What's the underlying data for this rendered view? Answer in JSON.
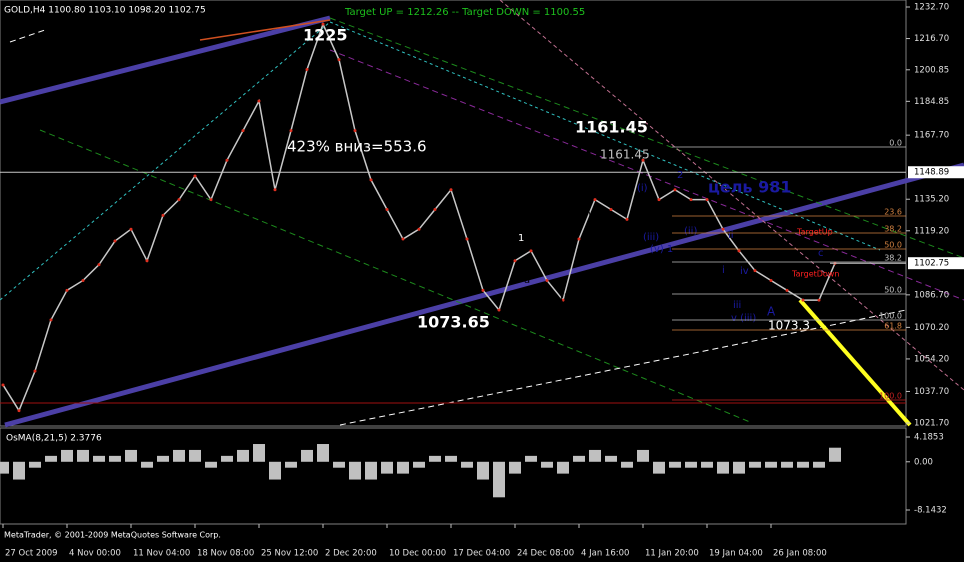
{
  "header": "GOLD,H4  1100.80 1103.10 1098.20 1102.75",
  "targets": "Target UP = 1212.26 -- Target DOWN = 1100.55",
  "copyright": "MetaTrader, © 2001-2009 MetaQuotes Software Corp.",
  "annotations": [
    "1225",
    "1161.45",
    "1073.65",
    "423% вниз=553.6",
    "1161.45",
    "цель 981",
    "TargetUp",
    "TargetDown",
    "1073.3",
    "(v) 3",
    "(iii)",
    "(iv)",
    "c 4",
    "(i)",
    "(ii)",
    "c 2",
    "1",
    "b",
    "a",
    "(i)",
    "(iii)",
    "(v) 1",
    "(ii)",
    "2",
    "ii",
    "i",
    "iv",
    "iii",
    "v (iii)",
    "A",
    "c"
  ],
  "fib_labels": [
    "0.0",
    "23.6",
    "38.2",
    "50.0",
    "38.2",
    "50.0",
    "100.0",
    "61.8",
    "100.0"
  ],
  "chart_data": [
    {
      "type": "line",
      "color": "#c8c8c8",
      "categories": [
        "27 Oct 2009",
        null,
        null,
        null,
        "4 Nov 00:00",
        null,
        null,
        null,
        "11 Nov 04:00",
        null,
        null,
        null,
        "18 Nov 08:00",
        null,
        null,
        null,
        "25 Nov 12:00",
        null,
        null,
        null,
        "2 Dec 20:00",
        null,
        null,
        null,
        "10 Dec 00:00",
        null,
        null,
        null,
        "17 Dec 04:00",
        null,
        null,
        null,
        "24 Dec 08:00",
        null,
        null,
        null,
        "4 Jan 16:00",
        null,
        null,
        null,
        "11 Jan 20:00",
        null,
        null,
        null,
        "19 Jan 04:00",
        null,
        null,
        null,
        "26 Jan 08:00",
        null,
        null,
        null,
        null
      ],
      "values": [
        1041,
        1028,
        1048,
        1074,
        1089,
        1094,
        1102,
        1114,
        1120,
        1104,
        1127,
        1135,
        1147,
        1135,
        1155,
        1170,
        1185,
        1140,
        1170,
        1201,
        1224,
        1206,
        1170,
        1145,
        1130,
        1115,
        1120,
        1130,
        1140,
        1115,
        1089,
        1079,
        1104,
        1109,
        1094,
        1084,
        1115,
        1135,
        1130,
        1125,
        1155,
        1135,
        1140,
        1135,
        1135,
        1120,
        1109,
        1099,
        1094,
        1089,
        1084,
        1084,
        1102.75
      ],
      "ylim": [
        1021.7,
        1232.7
      ],
      "yticks": [
        {
          "value": 1232.7,
          "label": "1232.70"
        },
        {
          "value": 1216.7,
          "label": "1216.70"
        },
        1200.85,
        1184.85,
        {
          "value": 1167.7,
          "label": "1167.70"
        },
        {
          "value": 1135.2,
          "label": "1135.20"
        },
        {
          "value": 1119.2,
          "label": "1119.20"
        },
        {
          "value": 1086.7,
          "label": "1086.70"
        },
        {
          "value": 1070.2,
          "label": "1070.20"
        },
        {
          "value": 1054.2,
          "label": "1054.20"
        },
        {
          "value": 1037.7,
          "label": "1037.70"
        },
        {
          "value": 1021.7,
          "label": "1021.70"
        }
      ],
      "hline": 1148.89,
      "last_price": 1102.75
    },
    {
      "type": "bar",
      "title": "OsMA(8,21,5) 2.3776",
      "color": "#c0c0c0",
      "values": [
        -2,
        -3,
        -1,
        1,
        2,
        2,
        1,
        1,
        2,
        -1,
        1,
        2,
        2,
        -1,
        1,
        2,
        3,
        -3,
        -1,
        2,
        3,
        -1,
        -3,
        -3,
        -2,
        -2,
        -1,
        1,
        1,
        -1,
        -3,
        -6,
        -2,
        1,
        -1,
        -2,
        1,
        2,
        1,
        -1,
        2,
        -2,
        -1,
        -1,
        -1,
        -2,
        -2,
        -1,
        -1,
        -1,
        -1,
        -1,
        2.3776
      ],
      "ylim": [
        -8.1432,
        4.1853
      ],
      "yticks": [
        4.1853,
        {
          "value": 0,
          "label": "0.00"
        },
        -8.1432
      ]
    }
  ]
}
